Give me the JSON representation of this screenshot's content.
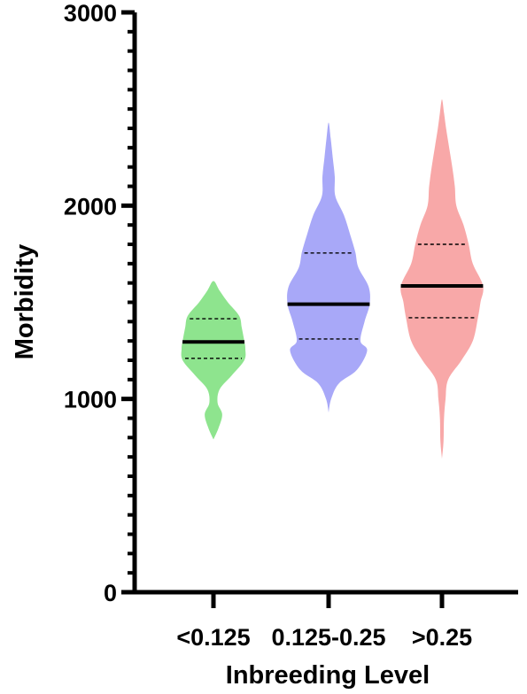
{
  "chart_data": {
    "type": "violin",
    "title": "",
    "xlabel": "Inbreeding Level",
    "ylabel": "Morbidity",
    "ylim": [
      0,
      3000
    ],
    "y_ticks": [
      0,
      1000,
      2000,
      3000
    ],
    "y_minor_step": 100,
    "grid": false,
    "legend": "none",
    "categories": [
      "<0.125",
      "0.125-0.25",
      ">0.25"
    ],
    "series": [
      {
        "category": "<0.125",
        "color": "#8ee48e",
        "min": 790,
        "max": 1610,
        "median": 1295,
        "q1": 1210,
        "q3": 1415,
        "density": [
          [
            790,
            0.0
          ],
          [
            850,
            0.1
          ],
          [
            920,
            0.17
          ],
          [
            980,
            0.08
          ],
          [
            1050,
            0.12
          ],
          [
            1120,
            0.35
          ],
          [
            1200,
            0.6
          ],
          [
            1260,
            0.62
          ],
          [
            1300,
            0.6
          ],
          [
            1370,
            0.55
          ],
          [
            1430,
            0.5
          ],
          [
            1500,
            0.28
          ],
          [
            1560,
            0.12
          ],
          [
            1610,
            0.0
          ]
        ]
      },
      {
        "category": "0.125-0.25",
        "color": "#a8a8f8",
        "min": 930,
        "max": 2430,
        "median": 1490,
        "q1": 1310,
        "q3": 1755,
        "density": [
          [
            930,
            0.0
          ],
          [
            1000,
            0.05
          ],
          [
            1080,
            0.2
          ],
          [
            1150,
            0.55
          ],
          [
            1250,
            0.75
          ],
          [
            1300,
            0.62
          ],
          [
            1400,
            0.7
          ],
          [
            1490,
            0.8
          ],
          [
            1580,
            0.78
          ],
          [
            1680,
            0.58
          ],
          [
            1760,
            0.52
          ],
          [
            1850,
            0.42
          ],
          [
            1950,
            0.3
          ],
          [
            2050,
            0.13
          ],
          [
            2150,
            0.12
          ],
          [
            2250,
            0.08
          ],
          [
            2350,
            0.04
          ],
          [
            2430,
            0.0
          ]
        ]
      },
      {
        "category": ">0.25",
        "color": "#f8a8a8",
        "min": 690,
        "max": 2550,
        "median": 1585,
        "q1": 1420,
        "q3": 1800,
        "density": [
          [
            690,
            0.0
          ],
          [
            780,
            0.03
          ],
          [
            900,
            0.04
          ],
          [
            1000,
            0.07
          ],
          [
            1100,
            0.12
          ],
          [
            1200,
            0.38
          ],
          [
            1300,
            0.6
          ],
          [
            1420,
            0.7
          ],
          [
            1500,
            0.75
          ],
          [
            1585,
            0.8
          ],
          [
            1700,
            0.6
          ],
          [
            1800,
            0.52
          ],
          [
            1900,
            0.42
          ],
          [
            2000,
            0.28
          ],
          [
            2100,
            0.25
          ],
          [
            2200,
            0.2
          ],
          [
            2300,
            0.14
          ],
          [
            2400,
            0.08
          ],
          [
            2480,
            0.04
          ],
          [
            2550,
            0.0
          ]
        ]
      }
    ]
  }
}
